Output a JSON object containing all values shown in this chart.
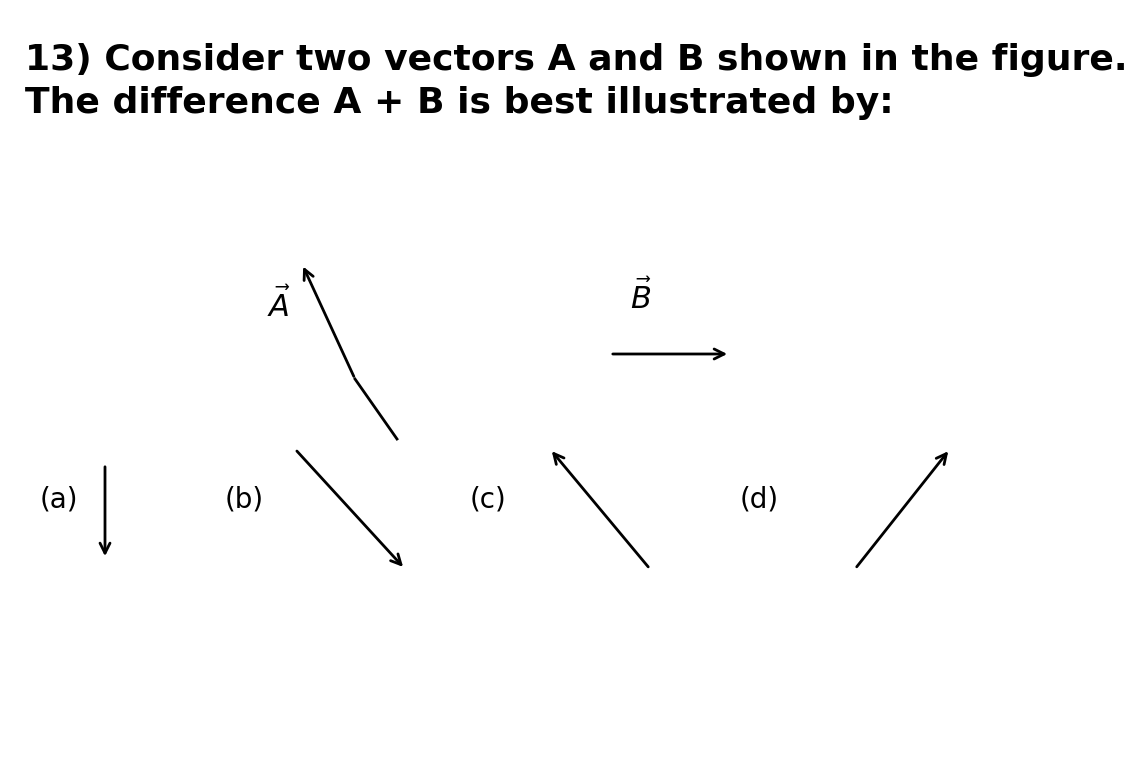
{
  "title_line1": "13) Consider two vectors A and B shown in the figure.",
  "title_line2": "The difference A + B is best illustrated by:",
  "bg_color": "#ffffff",
  "text_color": "#000000",
  "title_fontsize": 26,
  "label_fontsize": 20,
  "vec_A_label": "$\\vec{A}$",
  "vec_B_label": "$\\vec{B}$",
  "arrow_lw": 1.8,
  "arrow_ms": 16
}
